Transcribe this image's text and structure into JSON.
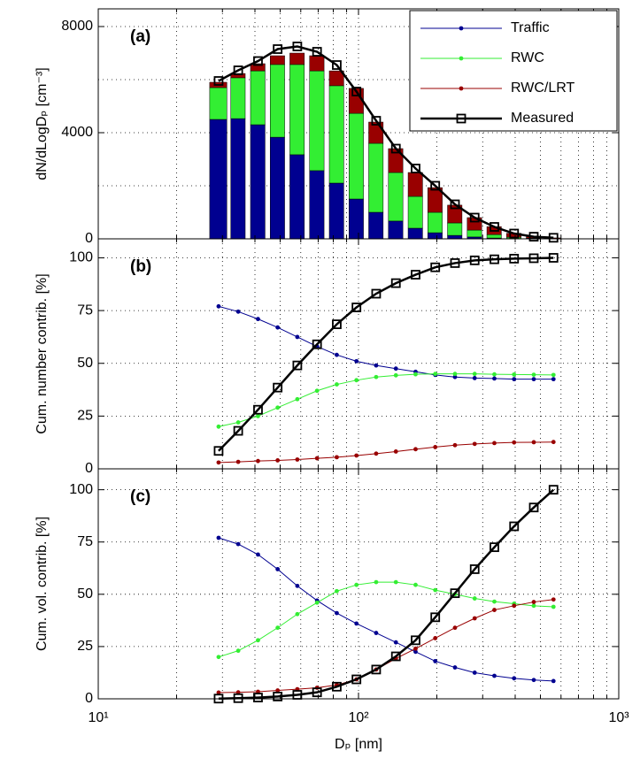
{
  "chart_data": [
    {
      "type": "bar",
      "annotation": "(a)",
      "ylabel": "dN/dLogDₚ [cm⁻³]",
      "xscale": "log",
      "xlim": [
        10,
        1000
      ],
      "xticks": [
        10,
        100,
        1000
      ],
      "xminor": [
        20,
        30,
        40,
        50,
        60,
        70,
        80,
        90,
        200,
        300,
        400,
        500,
        600,
        700,
        800,
        900
      ],
      "ylim": [
        0,
        8667
      ],
      "yticks": [
        0,
        4000,
        8000
      ],
      "yminor": [
        2000,
        6000
      ],
      "grid": true,
      "legend": "upper right",
      "x": [
        29.0,
        34.5,
        41.1,
        48.9,
        58.2,
        69.3,
        82.5,
        98.2,
        116.9,
        139.2,
        165.7,
        197.2,
        234.8,
        279.5,
        332.7,
        396.1,
        471.5,
        561.3
      ],
      "series": [
        {
          "name": "Traffic",
          "color": "#000090",
          "kind": "bar",
          "values": [
            4500,
            4530,
            4300,
            3830,
            3170,
            2570,
            2100,
            1500,
            1000,
            670,
            400,
            230,
            130,
            70,
            30,
            10,
            5,
            2
          ]
        },
        {
          "name": "RWC",
          "color": "#33ee33",
          "kind": "bar",
          "values": [
            1200,
            1540,
            2030,
            2740,
            3400,
            3760,
            3670,
            3230,
            2600,
            1830,
            1200,
            770,
            470,
            260,
            130,
            50,
            20,
            8
          ]
        },
        {
          "name": "RWC/LRT",
          "color": "#990000",
          "kind": "bar",
          "values": [
            200,
            160,
            270,
            330,
            430,
            570,
            560,
            940,
            800,
            900,
            900,
            930,
            670,
            470,
            300,
            150,
            60,
            25
          ]
        },
        {
          "name": "Measured",
          "color": "#000000",
          "kind": "line",
          "marker": "square",
          "values": [
            5950,
            6350,
            6700,
            7150,
            7250,
            7050,
            6550,
            5550,
            4450,
            3400,
            2650,
            2000,
            1300,
            800,
            450,
            200,
            80,
            40
          ]
        }
      ]
    },
    {
      "type": "line",
      "annotation": "(b)",
      "ylabel": "Cum. number contrib. [%]",
      "xscale": "log",
      "xlim": [
        10,
        1000
      ],
      "xticks": [
        10,
        100,
        1000
      ],
      "xminor": [
        20,
        30,
        40,
        50,
        60,
        70,
        80,
        90,
        200,
        300,
        400,
        500,
        600,
        700,
        800,
        900
      ],
      "ylim": [
        0,
        109
      ],
      "yticks": [
        0,
        25,
        50,
        75,
        100
      ],
      "grid": true,
      "x": [
        29.0,
        34.5,
        41.1,
        48.9,
        58.2,
        69.3,
        82.5,
        98.2,
        116.9,
        139.2,
        165.7,
        197.2,
        234.8,
        279.5,
        332.7,
        396.1,
        471.5,
        561.3
      ],
      "series": [
        {
          "color": "#000090",
          "marker": "dot",
          "values": [
            77,
            74.5,
            71,
            67,
            62.5,
            58,
            54,
            51,
            49,
            47.5,
            46,
            44.5,
            43.5,
            43,
            42.8,
            42.5,
            42.5,
            42.5
          ]
        },
        {
          "color": "#33ee33",
          "marker": "dot",
          "values": [
            20,
            22,
            25,
            29,
            33,
            37,
            40,
            42,
            43.5,
            44.3,
            44.8,
            45,
            45,
            45,
            44.8,
            44.7,
            44.6,
            44.5
          ]
        },
        {
          "color": "#990000",
          "marker": "dot",
          "values": [
            3,
            3.3,
            3.7,
            4,
            4.4,
            5,
            5.5,
            6.3,
            7.2,
            8.2,
            9.3,
            10.3,
            11.2,
            11.8,
            12.2,
            12.5,
            12.6,
            12.7
          ]
        },
        {
          "color": "#000000",
          "marker": "square",
          "values": [
            8.5,
            18,
            28,
            38.5,
            49,
            59,
            68.5,
            76.5,
            83,
            88,
            92,
            95.5,
            97.5,
            98.8,
            99.3,
            99.6,
            99.8,
            100
          ]
        }
      ]
    },
    {
      "type": "line",
      "annotation": "(c)",
      "ylabel": "Cum. vol. contrib. [%]",
      "xlabel": "Dₚ [nm]",
      "xscale": "log",
      "xlim": [
        10,
        1000
      ],
      "xticks": [
        {
          "value": 10,
          "label": "10¹"
        },
        {
          "value": 100,
          "label": "10²"
        },
        {
          "value": 1000,
          "label": "10³"
        }
      ],
      "xminor": [
        20,
        30,
        40,
        50,
        60,
        70,
        80,
        90,
        200,
        300,
        400,
        500,
        600,
        700,
        800,
        900
      ],
      "ylim": [
        0,
        110
      ],
      "yticks": [
        0,
        25,
        50,
        75,
        100
      ],
      "grid": true,
      "x": [
        29.0,
        34.5,
        41.1,
        48.9,
        58.2,
        69.3,
        82.5,
        98.2,
        116.9,
        139.2,
        165.7,
        197.2,
        234.8,
        279.5,
        332.7,
        396.1,
        471.5,
        561.3
      ],
      "series": [
        {
          "color": "#000090",
          "marker": "dot",
          "values": [
            77,
            74,
            69,
            62,
            54,
            47,
            41,
            36,
            31.5,
            27,
            22.5,
            18,
            15,
            12.5,
            11,
            9.8,
            9,
            8.5
          ]
        },
        {
          "color": "#33ee33",
          "marker": "dot",
          "values": [
            20,
            23,
            28,
            34,
            40.5,
            46,
            51.5,
            54.5,
            55.8,
            55.8,
            54.5,
            52,
            50,
            48,
            46.5,
            45.5,
            44.5,
            44
          ]
        },
        {
          "color": "#990000",
          "marker": "dot",
          "values": [
            3,
            3.1,
            3.4,
            4,
            4.6,
            5.3,
            6.6,
            9.3,
            14,
            19.3,
            24,
            29,
            34,
            38.5,
            42.5,
            44.5,
            46.3,
            47.5
          ]
        },
        {
          "color": "#000000",
          "marker": "square",
          "values": [
            0.1,
            0.3,
            0.6,
            1.1,
            1.9,
            3.1,
            5.8,
            9.3,
            14,
            20.3,
            28,
            39,
            50.5,
            62,
            72.5,
            82.5,
            91.5,
            100
          ]
        }
      ]
    }
  ]
}
